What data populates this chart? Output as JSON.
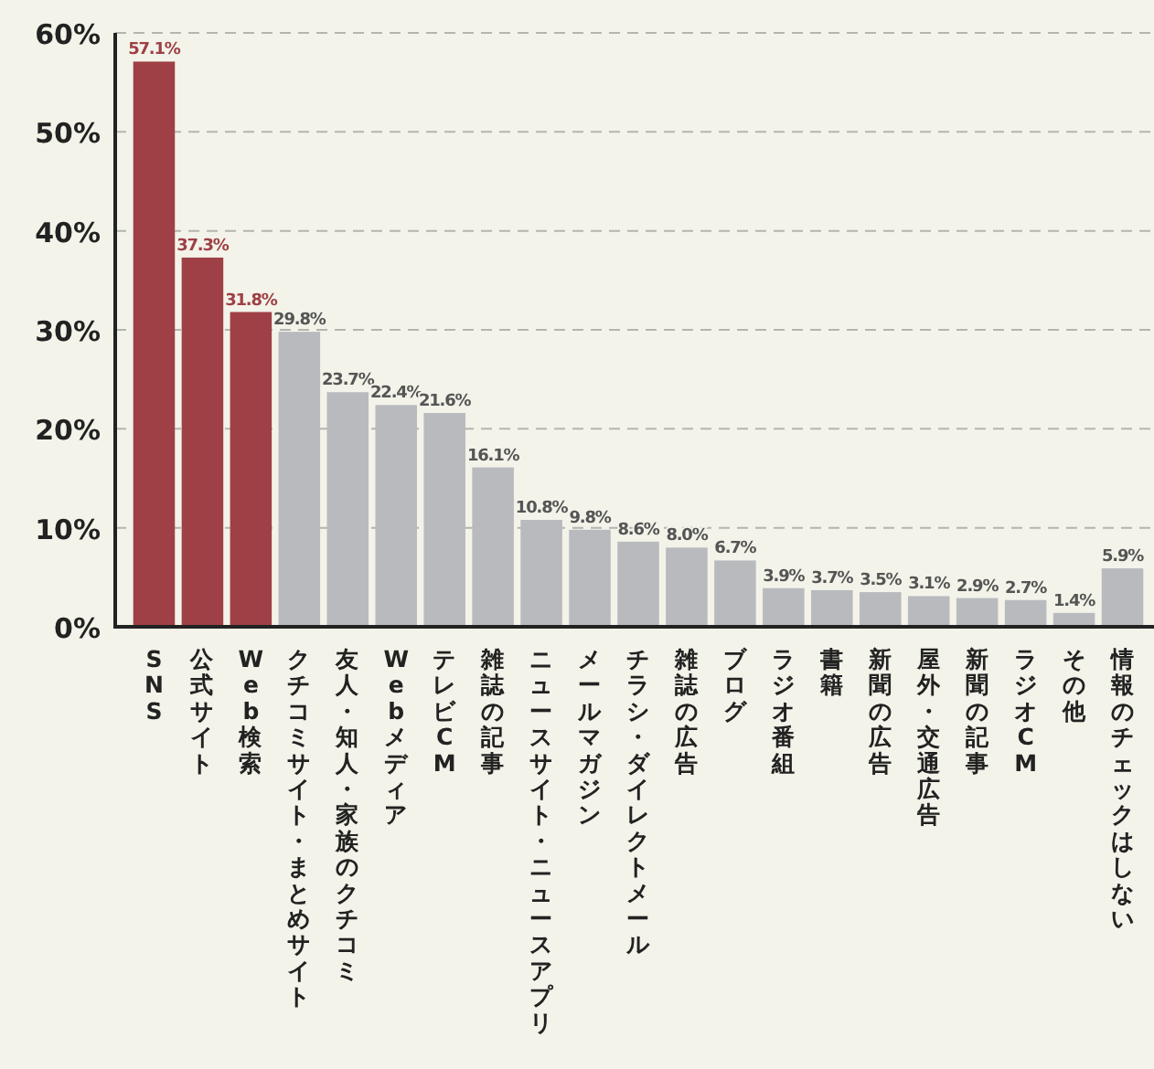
{
  "chart_data": {
    "type": "bar",
    "categories": [
      "SNS",
      "公式サイト",
      "Web検索",
      "クチコミサイト・まとめサイト",
      "友人・知人・家族のクチコミ",
      "Webメディア",
      "テレビCM",
      "雑誌の記事",
      "ニュースサイト・ニュースアプリ",
      "メールマガジン",
      "チラシ・ダイレクトメール",
      "雑誌の広告",
      "ブログ",
      "ラジオ番組",
      "書籍",
      "新聞の広告",
      "屋外・交通広告",
      "新聞の記事",
      "ラジオCM",
      "その他",
      "情報のチェックはしない"
    ],
    "values": [
      57.1,
      37.3,
      31.8,
      29.8,
      23.7,
      22.4,
      21.6,
      16.1,
      10.8,
      9.8,
      8.6,
      8.0,
      6.7,
      3.9,
      3.7,
      3.5,
      3.1,
      2.9,
      2.7,
      1.4,
      5.9
    ],
    "value_labels": [
      "57.1%",
      "37.3%",
      "31.8%",
      "29.8%",
      "23.7%",
      "22.4%",
      "21.6%",
      "16.1%",
      "10.8%",
      "9.8%",
      "8.6%",
      "8.0%",
      "6.7%",
      "3.9%",
      "3.7%",
      "3.5%",
      "3.1%",
      "2.9%",
      "2.7%",
      "1.4%",
      "5.9%"
    ],
    "colors": [
      "#9e4045",
      "#9e4045",
      "#9e4045",
      "#b9babe",
      "#b9babe",
      "#b9babe",
      "#b9babe",
      "#b9babe",
      "#b9babe",
      "#b9babe",
      "#b9babe",
      "#b9babe",
      "#b9babe",
      "#b9babe",
      "#b9babe",
      "#b9babe",
      "#b9babe",
      "#b9babe",
      "#b9babe",
      "#b9babe",
      "#b9babe"
    ],
    "ylim": [
      0,
      60
    ],
    "yticks": [
      {
        "value": 0,
        "label": "0%"
      },
      {
        "value": 10,
        "label": "10%"
      },
      {
        "value": 20,
        "label": "20%"
      },
      {
        "value": 30,
        "label": "30%"
      },
      {
        "value": 40,
        "label": "40%"
      },
      {
        "value": 50,
        "label": "50%"
      },
      {
        "value": 60,
        "label": "60%"
      }
    ],
    "grid": "y"
  }
}
